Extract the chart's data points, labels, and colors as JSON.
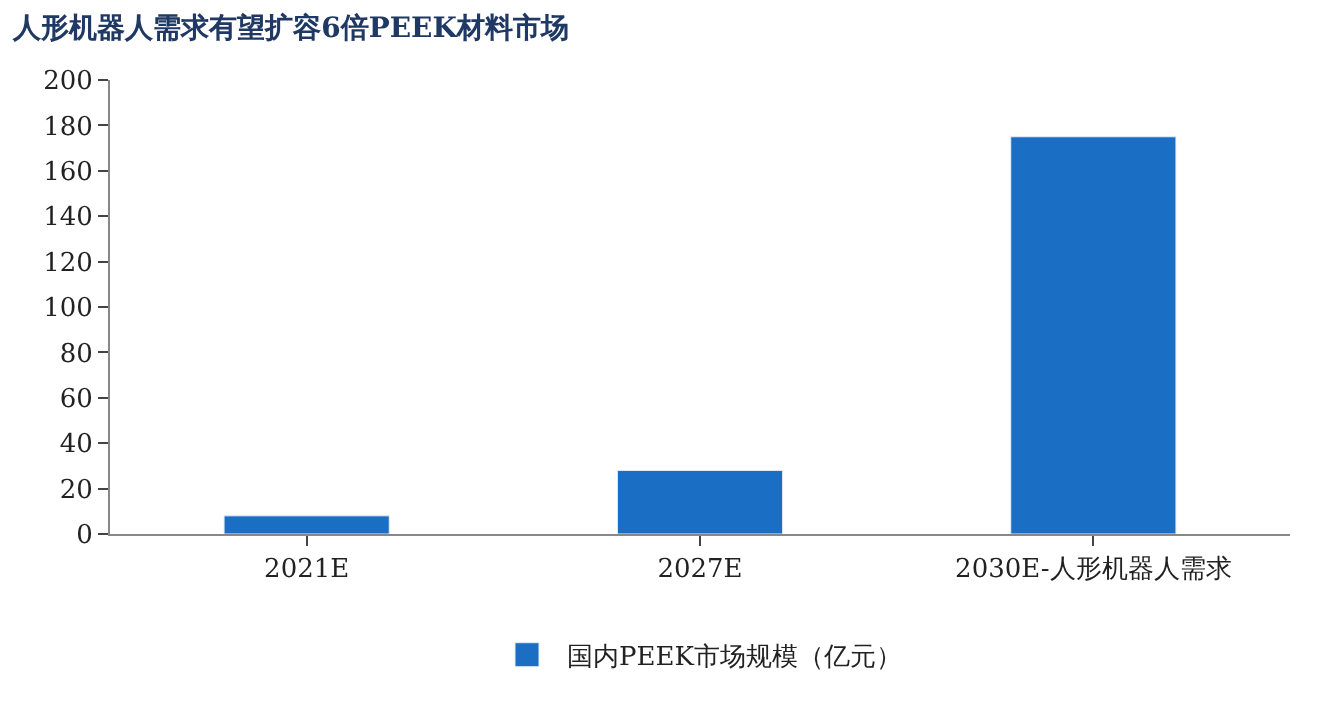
{
  "chart_data": {
    "type": "bar",
    "title": "人形机器人需求有望扩容6倍PEEK材料市场",
    "categories": [
      "2021E",
      "2027E",
      "2030E-人形机器人需求"
    ],
    "series": [
      {
        "name": "国内PEEK市场规模（亿元）",
        "color": "#1a6fc4",
        "values": [
          8,
          28,
          175
        ]
      }
    ],
    "ylim": [
      0,
      200
    ],
    "yticks": [
      0,
      20,
      40,
      60,
      80,
      100,
      120,
      140,
      160,
      180,
      200
    ],
    "legend": "bottom"
  }
}
